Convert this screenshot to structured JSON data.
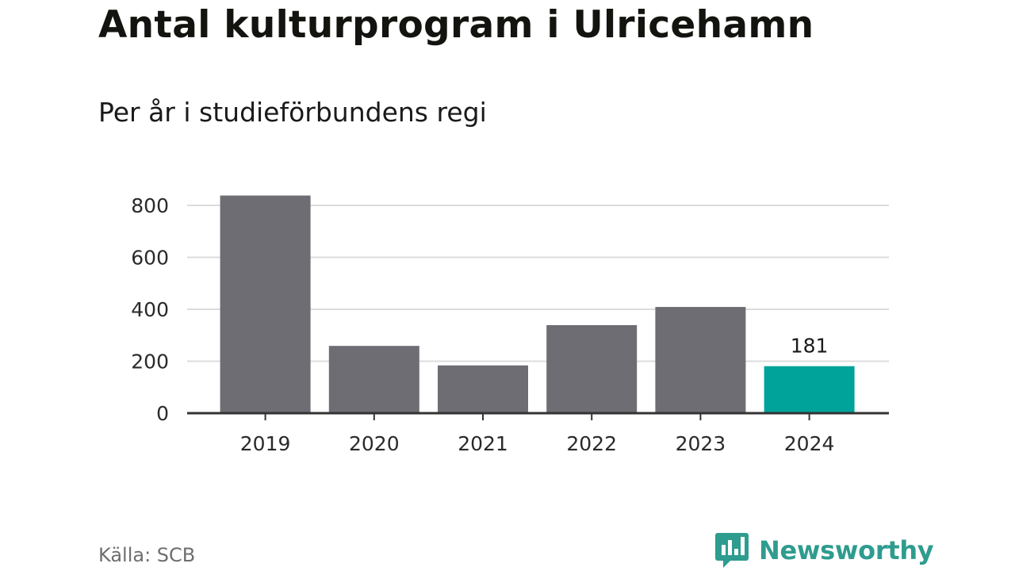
{
  "header": {
    "title": "Antal kulturprogram i Ulricehamn",
    "subtitle": "Per år i studieförbundens regi"
  },
  "footer": {
    "source": "Källa: SCB",
    "brand": "Newsworthy"
  },
  "colors": {
    "bar": "#6e6d73",
    "highlight": "#00a39a",
    "grid": "#dcdcdc",
    "axis": "#333333",
    "brand": "#2e9c8f"
  },
  "icons": {
    "logo": "bar-chart-speech-bubble-icon"
  },
  "chart_data": {
    "type": "bar",
    "title": "Antal kulturprogram i Ulricehamn",
    "subtitle": "Per år i studieförbundens regi",
    "xlabel": "",
    "ylabel": "",
    "categories": [
      "2019",
      "2020",
      "2021",
      "2022",
      "2023",
      "2024"
    ],
    "values": [
      838,
      259,
      184,
      339,
      409,
      181
    ],
    "highlight_index": 5,
    "data_labels": {
      "2024": "181"
    },
    "ylim": [
      0,
      800
    ],
    "yticks": [
      0,
      200,
      400,
      600,
      800
    ],
    "grid": true,
    "legend": "none"
  }
}
